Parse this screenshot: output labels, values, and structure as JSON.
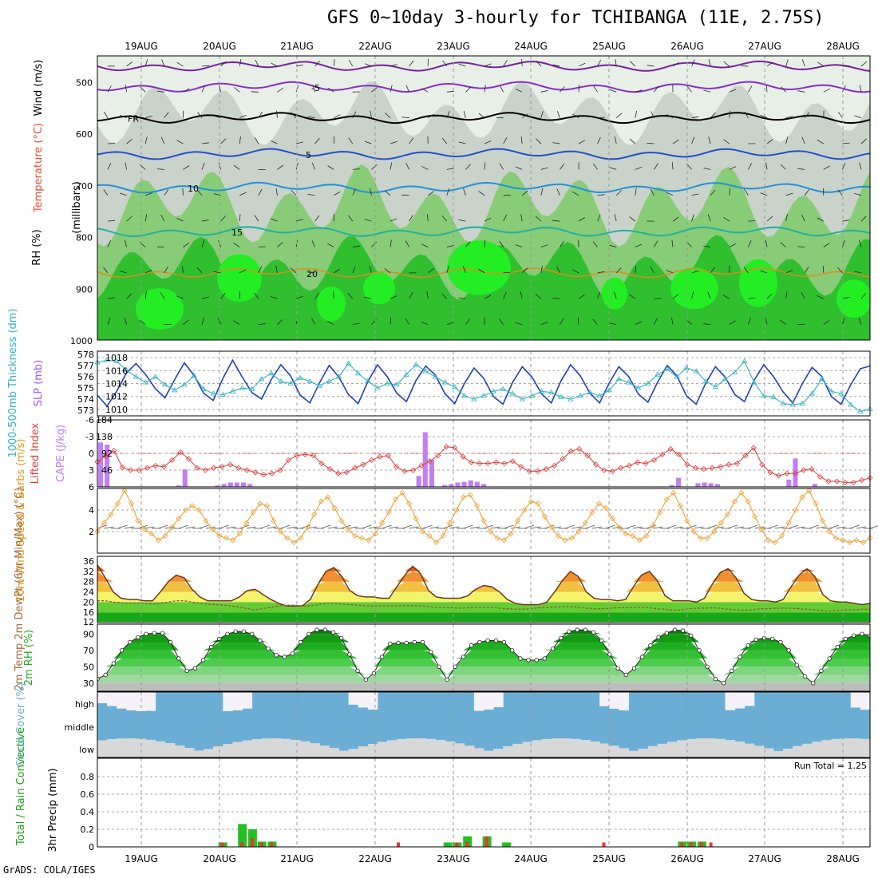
{
  "title": "GFS 0~10day 3-hourly for TCHIBANGA (11E, 2.75S)",
  "footer": "GrADS: COLA/IGES",
  "dates": [
    "19AUG",
    "20AUG",
    "21AUG",
    "22AUG",
    "23AUG",
    "24AUG",
    "25AUG",
    "26AUG",
    "27AUG",
    "28AUG"
  ],
  "colors": {
    "rh_green": "#2fbf2f",
    "rh_bright": "#22ee22",
    "rh_mid": "#88cc77",
    "rh_grey": "#c9d3c9",
    "cloud_blue": "#6aaed6",
    "cloud_grey": "#d8d8d8",
    "cloud_white": "#f4f2f8",
    "slp_blue": "#1f3fbf",
    "thick_cyan": "#33b2c2",
    "lifted_red": "#e03c3c",
    "cape_purple": "#c07ff5",
    "wind_orange": "#f0a030",
    "precip_green": "#22c022",
    "precip_red": "#ee3333"
  },
  "chart_data": [
    {
      "type": "heatmap",
      "panel": "upper-air",
      "ylabel_rh": "RH (%)",
      "ylabel_temp": "Temperature (°C)",
      "ylabel_wind": "Wind (m/s)",
      "ylabel_units": "(millibars)",
      "ylim": [
        1000,
        450
      ],
      "yticks": [
        500,
        600,
        700,
        800,
        900,
        1000
      ],
      "contour_labels": [
        {
          "text": "-5",
          "level": 510
        },
        {
          "text": "FR",
          "level": 570
        },
        {
          "text": "5",
          "level": 640
        },
        {
          "text": "10",
          "level": 705
        },
        {
          "text": "15",
          "level": 790
        },
        {
          "text": "20",
          "level": 870
        }
      ]
    },
    {
      "type": "line",
      "panel": "thickness-slp",
      "ylabel_left": "1000-500mb Thickness (dm)",
      "ylabel_right": "SLP (mb)",
      "left_ticks": [
        573,
        574,
        575,
        576,
        577,
        578
      ],
      "right_ticks": [
        1010,
        1012,
        1014,
        1016,
        1018
      ],
      "series": [
        {
          "name": "SLP",
          "axis": "right",
          "values": [
            1012.2,
            1010.5,
            1012.8,
            1015.6,
            1017.1,
            1015.4,
            1013.2,
            1011.8,
            1014.6,
            1017.2,
            1015.3,
            1012.5,
            1011.4,
            1014.8,
            1017.6,
            1015.0,
            1012.6,
            1011.6,
            1014.6,
            1016.9,
            1015.2,
            1012.2,
            1011.0,
            1014.1,
            1016.8,
            1015.0,
            1012.3,
            1010.9,
            1014.3,
            1016.9,
            1015.1,
            1012.5,
            1011.2,
            1014.5,
            1016.7,
            1015.3,
            1012.4,
            1010.9,
            1014.0,
            1016.4,
            1014.8,
            1012.0,
            1010.8,
            1014.2,
            1016.6,
            1015.0,
            1012.4,
            1011.0,
            1014.4,
            1016.9,
            1015.2,
            1012.5,
            1011.0,
            1014.1,
            1016.6,
            1015.1,
            1012.4,
            1011.1,
            1014.2,
            1016.8,
            1015.2,
            1012.1,
            1010.8,
            1014.1,
            1016.6,
            1015.0,
            1012.3,
            1011.2,
            1014.5,
            1016.9,
            1015.1,
            1012.7,
            1011.0,
            1014.0,
            1016.5,
            1015.1,
            1012.0,
            1010.8,
            1013.8,
            1016.3,
            1016.7
          ]
        },
        {
          "name": "Thickness",
          "axis": "left",
          "values": [
            577.3,
            577.5,
            577.4,
            576.6,
            576.0,
            575.5,
            576.0,
            575.3,
            574.8,
            575.3,
            576.1,
            574.9,
            574.5,
            574.4,
            574.7,
            575.0,
            574.9,
            575.8,
            576.3,
            575.6,
            575.4,
            575.9,
            575.6,
            575.2,
            575.6,
            576.0,
            577.2,
            576.3,
            575.6,
            575.0,
            575.4,
            575.3,
            576.2,
            577.1,
            576.5,
            576.0,
            575.5,
            575.1,
            574.3,
            574.0,
            574.3,
            574.7,
            574.9,
            574.5,
            574.0,
            574.3,
            574.7,
            574.6,
            574.2,
            574.0,
            574.3,
            574.6,
            574.3,
            574.8,
            575.8,
            575.5,
            575.0,
            575.4,
            576.2,
            576.7,
            576.0,
            576.8,
            576.5,
            575.6,
            575.1,
            575.8,
            576.4,
            577.4,
            575.5,
            574.3,
            574.2,
            573.6,
            573.5,
            573.6,
            574.5,
            575.8,
            574.7,
            574.5,
            573.5,
            572.9,
            573.1
          ]
        }
      ]
    },
    {
      "type": "bar",
      "panel": "cape-lifted",
      "ylabel_left": "Lifted Index",
      "ylabel_right": "CAPE (J/kg)",
      "left_ticks": [
        6,
        3,
        0,
        -3,
        -6
      ],
      "right_ticks": [
        46,
        92,
        138,
        184
      ],
      "cape_values": [
        122,
        116,
        0,
        0,
        0,
        0,
        0,
        0,
        0,
        0,
        0,
        0,
        4,
        48,
        0,
        0,
        0,
        0,
        4,
        8,
        12,
        12,
        12,
        8,
        0,
        0,
        0,
        0,
        0,
        0,
        0,
        0,
        0,
        0,
        0,
        0,
        0,
        0,
        0,
        0,
        0,
        0,
        0,
        0,
        0,
        0,
        0,
        0,
        0,
        30,
        150,
        75,
        0,
        5,
        8,
        12,
        14,
        18,
        14,
        8,
        0,
        0,
        0,
        0,
        0,
        0,
        0,
        0,
        0,
        0,
        0,
        0,
        0,
        0,
        0,
        0,
        0,
        0,
        0,
        0,
        0,
        0,
        0,
        0,
        0,
        0,
        0,
        0,
        5,
        25,
        0,
        0,
        10,
        12,
        10,
        8,
        0,
        0,
        0,
        0,
        0,
        0,
        0,
        0,
        0,
        0,
        20,
        78,
        0,
        0,
        8,
        0,
        0,
        0,
        0,
        0,
        0,
        0,
        0
      ],
      "lifted_values": [
        1.5,
        0.5,
        -0.5,
        2.5,
        3.0,
        3.0,
        2.6,
        2.2,
        2.4,
        1.2,
        -0.2,
        1.0,
        2.6,
        3.0,
        2.6,
        2.4,
        2.0,
        2.6,
        3.0,
        3.4,
        3.8,
        3.6,
        3.0,
        1.2,
        0.4,
        0.2,
        0.4,
        1.8,
        2.8,
        3.6,
        3.4,
        2.6,
        2.0,
        1.2,
        0.6,
        0.4,
        2.4,
        3.2,
        3.0,
        2.2,
        1.4,
        0.4,
        -1.2,
        -1.0,
        0.6,
        1.6,
        1.8,
        1.8,
        1.6,
        1.8,
        1.4,
        2.4,
        3.2,
        3.2,
        2.8,
        2.2,
        1.0,
        -0.4,
        -0.8,
        0.4,
        2.0,
        3.0,
        3.2,
        2.6,
        2.2,
        1.6,
        1.8,
        1.2,
        0.2,
        -0.8,
        0.2,
        2.0,
        2.6,
        2.8,
        2.6,
        2.4,
        2.0,
        1.8,
        0.4,
        -1.0,
        2.0,
        3.4,
        4.0,
        3.6,
        3.6,
        3.0,
        2.8,
        4.2,
        5.0,
        5.0,
        5.2,
        5.2,
        4.8,
        4.4
      ]
    },
    {
      "type": "line",
      "panel": "wind10m",
      "ylabel": "10m Wind Speed & Barbs (m/s)",
      "ylim": [
        0,
        6
      ],
      "yticks": [
        2,
        4
      ],
      "values": [
        2.0,
        2.8,
        3.6,
        4.6,
        5.8,
        4.6,
        3.0,
        2.2,
        1.8,
        1.2,
        1.6,
        2.4,
        3.2,
        4.0,
        4.4,
        4.0,
        3.0,
        2.2,
        1.6,
        1.4,
        1.2,
        1.8,
        2.8,
        3.8,
        4.6,
        4.4,
        3.0,
        2.0,
        1.4,
        1.0,
        1.4,
        2.4,
        3.6,
        4.8,
        5.2,
        4.2,
        3.0,
        2.2,
        1.6,
        1.4,
        1.2,
        1.8,
        2.8,
        3.8,
        5.0,
        5.6,
        4.6,
        3.2,
        2.0,
        1.6,
        1.0,
        1.6,
        2.8,
        4.0,
        5.2,
        5.4,
        4.4,
        3.0,
        2.0,
        1.4,
        1.2,
        1.8,
        3.0,
        4.0,
        4.8,
        4.6,
        3.4,
        2.4,
        1.6,
        1.2,
        1.4,
        2.0,
        2.8,
        3.8,
        4.6,
        4.2,
        3.2,
        2.4,
        1.8,
        1.6,
        1.2,
        1.6,
        2.6,
        3.8,
        5.0,
        5.6,
        4.4,
        3.0,
        2.0,
        1.4,
        1.4,
        2.0,
        2.8,
        3.6,
        4.8,
        5.6,
        4.8,
        3.4,
        2.2,
        1.2,
        1.0,
        1.6,
        2.8,
        4.0,
        5.2,
        5.8,
        4.6,
        3.0,
        2.0,
        1.4,
        1.2,
        1.0,
        1.2,
        1.0,
        1.4
      ]
    },
    {
      "type": "area",
      "panel": "temperature",
      "ylabel": "2m Temp 2m DewPt (6hr Min/Max) (°C)",
      "ylim": [
        12,
        36
      ],
      "yticks": [
        16,
        20,
        24,
        28,
        32,
        36
      ],
      "series": [
        {
          "name": "Temp",
          "values": [
            34.5,
            29.5,
            24.0,
            21.5,
            21.0,
            21.0,
            20.5,
            20.5,
            24.0,
            28.0,
            30.5,
            29.5,
            25.0,
            22.0,
            20.5,
            20.5,
            20.5,
            20.5,
            22.0,
            24.5,
            25.0,
            23.0,
            21.0,
            19.5,
            18.5,
            18.5,
            18.5,
            21.0,
            27.0,
            32.0,
            33.5,
            30.0,
            24.5,
            22.5,
            22.0,
            22.0,
            21.5,
            21.5,
            26.0,
            30.5,
            34.0,
            31.0,
            24.5,
            22.0,
            21.5,
            21.5,
            21.5,
            22.5,
            25.0,
            26.5,
            26.0,
            24.0,
            21.0,
            19.5,
            19.0,
            19.0,
            19.0,
            20.0,
            24.0,
            28.5,
            32.0,
            30.0,
            24.0,
            21.5,
            21.0,
            21.0,
            20.5,
            21.0,
            26.0,
            30.5,
            32.0,
            28.5,
            22.5,
            20.5,
            20.5,
            20.5,
            20.0,
            21.5,
            27.0,
            31.5,
            33.0,
            29.5,
            23.5,
            21.0,
            20.5,
            20.5,
            20.0,
            21.0,
            26.0,
            30.5,
            33.0,
            30.0,
            23.0,
            20.5,
            20.0,
            20.0,
            19.5,
            19.0,
            19.5
          ]
        },
        {
          "name": "DewPt",
          "values": [
            20.5,
            20.5,
            20.0,
            19.8,
            19.5,
            19.5,
            19.5,
            19.2,
            19.5,
            20.0,
            20.5,
            20.5,
            20.0,
            19.5,
            19.2,
            19.0,
            18.8,
            18.5,
            18.0,
            17.5,
            17.0,
            17.5,
            18.0,
            18.5,
            18.8,
            18.8,
            18.5,
            18.5,
            19.0,
            19.5,
            19.5,
            19.2,
            19.0,
            18.8,
            18.5,
            18.5,
            18.5,
            18.5,
            18.5,
            18.6,
            18.6,
            18.5,
            18.2,
            18.0,
            17.8,
            17.8,
            17.6,
            17.8,
            18.0,
            18.0,
            18.0,
            17.6,
            17.4,
            17.2,
            17.2,
            17.4,
            17.8,
            18.0,
            18.0,
            18.2,
            18.2,
            18.0,
            17.6,
            17.4,
            17.4,
            17.6,
            17.8,
            17.8,
            18.0,
            18.0,
            17.8,
            17.4,
            17.2,
            16.8,
            17.0,
            17.4,
            17.6,
            17.6,
            17.8,
            17.6,
            17.2,
            17.0,
            16.8,
            17.0,
            17.4,
            17.4,
            17.6,
            17.6,
            17.6,
            17.4,
            17.2,
            17.0,
            16.6,
            16.4,
            16.8,
            17.0,
            17.0,
            17.2,
            17.2
          ]
        }
      ]
    },
    {
      "type": "area",
      "panel": "rh2m",
      "ylabel": "2m RH (%)",
      "ylim": [
        20,
        100
      ],
      "yticks": [
        30,
        50,
        70,
        90
      ],
      "values": [
        35,
        40,
        54,
        70,
        80,
        86,
        90,
        91,
        91,
        80,
        60,
        45,
        48,
        58,
        74,
        84,
        90,
        93,
        93,
        90,
        82,
        72,
        64,
        62,
        66,
        80,
        90,
        95,
        95,
        92,
        85,
        65,
        45,
        34,
        42,
        62,
        78,
        79,
        79,
        80,
        80,
        68,
        50,
        34,
        50,
        62,
        76,
        80,
        82,
        82,
        80,
        70,
        60,
        58,
        58,
        60,
        72,
        85,
        93,
        95,
        95,
        92,
        82,
        65,
        48,
        40,
        48,
        62,
        76,
        86,
        91,
        95,
        94,
        88,
        70,
        50,
        35,
        30,
        45,
        62,
        76,
        83,
        85,
        84,
        80,
        70,
        52,
        38,
        30,
        45,
        60,
        74,
        84,
        88,
        90,
        88
      ]
    },
    {
      "type": "area",
      "panel": "cloud",
      "ylabel": "Cloud Cover (%)",
      "row_labels": [
        "high",
        "middle",
        "low"
      ]
    },
    {
      "type": "bar",
      "panel": "precip",
      "ylabel_left": "Total / Rain Convective",
      "ylabel_right": "3hr Precip (mm)",
      "run_total": "Run Total = 1.25",
      "ylim": [
        0,
        1.0
      ],
      "yticks": [
        0,
        0.2,
        0.4,
        0.6,
        0.8
      ],
      "bars": [
        {
          "x": 12.0,
          "total": 0.05,
          "conv": 0.05
        },
        {
          "x": 12.25,
          "total": 0.26,
          "conv": 0.05
        },
        {
          "x": 12.38,
          "total": 0.2,
          "conv": 0.1
        },
        {
          "x": 12.5,
          "total": 0.06,
          "conv": 0.05
        },
        {
          "x": 12.63,
          "total": 0.06,
          "conv": 0.05
        },
        {
          "x": 14.25,
          "total": 0.0,
          "conv": 0.05
        },
        {
          "x": 14.88,
          "total": 0.05,
          "conv": 0.0
        },
        {
          "x": 15.0,
          "total": 0.05,
          "conv": 0.05
        },
        {
          "x": 15.13,
          "total": 0.12,
          "conv": 0.06
        },
        {
          "x": 15.38,
          "total": 0.12,
          "conv": 0.12
        },
        {
          "x": 15.63,
          "total": 0.05,
          "conv": 0.0
        },
        {
          "x": 16.88,
          "total": 0.0,
          "conv": 0.05
        },
        {
          "x": 17.88,
          "total": 0.06,
          "conv": 0.05
        },
        {
          "x": 18.0,
          "total": 0.06,
          "conv": 0.05
        },
        {
          "x": 18.13,
          "total": 0.06,
          "conv": 0.05
        },
        {
          "x": 18.25,
          "total": 0.0,
          "conv": 0.05
        }
      ]
    }
  ]
}
